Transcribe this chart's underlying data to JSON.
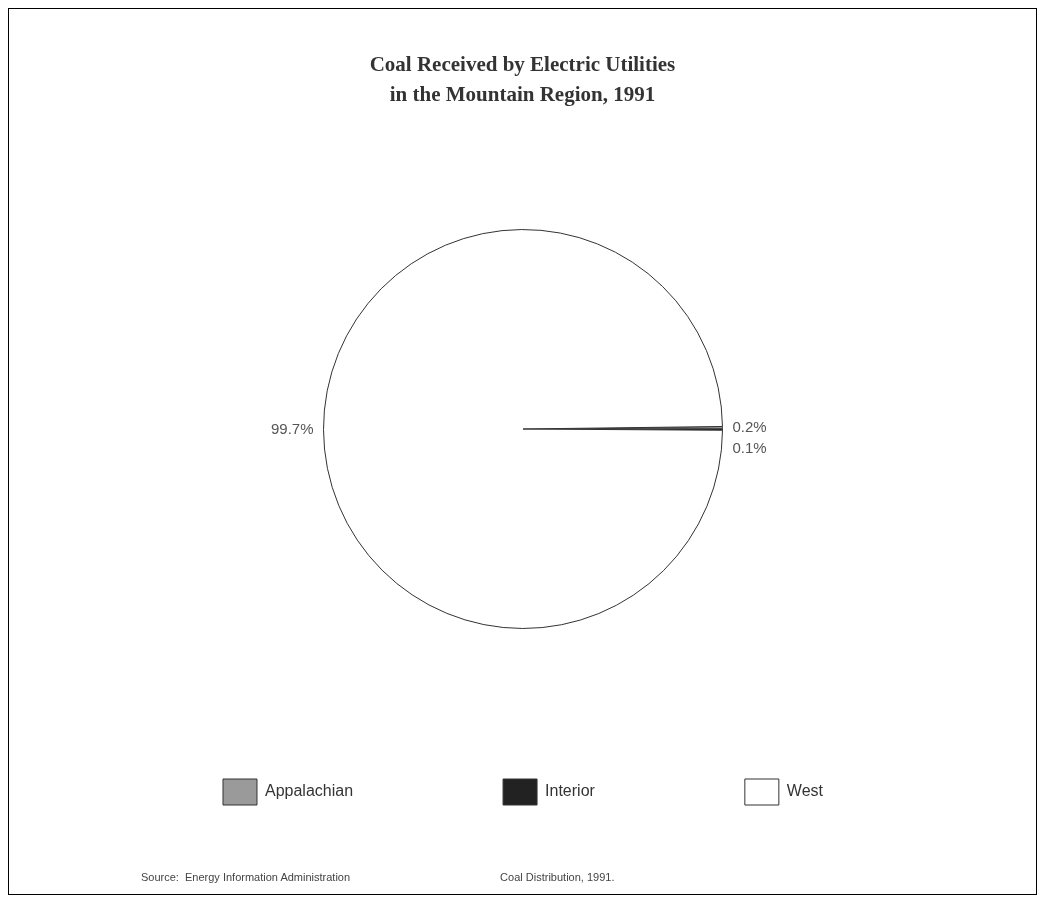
{
  "chart_data": {
    "type": "pie",
    "title": "Coal Received by Electric Utilities\nin the Mountain Region, 1991",
    "categories": [
      "Appalachian",
      "Interior",
      "West"
    ],
    "values": [
      0.2,
      0.1,
      99.7
    ],
    "value_labels": [
      "0.2%",
      "0.1%",
      "99.7%"
    ],
    "colors": [
      "#9a9a9a",
      "#222222",
      "#ffffff"
    ],
    "legend": "bottom",
    "annotations": [
      "Source:  Energy Information Administration",
      "Coal Distribution, 1991."
    ]
  }
}
